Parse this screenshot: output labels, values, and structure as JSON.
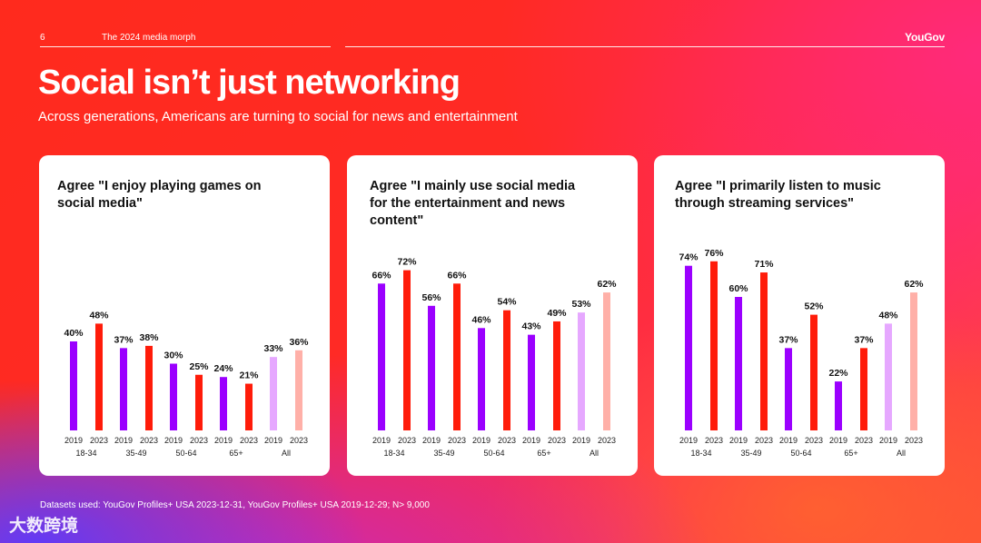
{
  "header": {
    "page_number": "6",
    "doc_title": "The 2024 media morph",
    "brand": "YouGov"
  },
  "title": "Social isn’t just networking",
  "subtitle": "Across generations, Americans are turning to social for news and entertainment",
  "footer": "Datasets used: YouGov Profiles+ USA 2023-12-31, YouGov Profiles+ USA 2019-12-29; N> 9,000",
  "watermark": "大数跨境",
  "colors": {
    "bar_2019": "#9b00ff",
    "bar_2023": "#ff1c0a",
    "bar_all_2019": "#e6a8ff",
    "bar_all_2023": "#ffb0a8",
    "card_bg": "#ffffff"
  },
  "chart_data": [
    {
      "type": "bar",
      "title": "Agree \"I enjoy playing games on social media\"",
      "categories": [
        "18-34",
        "35-49",
        "50-64",
        "65+",
        "All"
      ],
      "years": [
        "2019",
        "2023"
      ],
      "series": [
        {
          "name": "2019",
          "values": [
            40,
            37,
            30,
            24,
            33
          ]
        },
        {
          "name": "2023",
          "values": [
            48,
            38,
            25,
            21,
            36
          ]
        }
      ],
      "value_labels": [
        [
          "40%",
          "48%"
        ],
        [
          "37%",
          "38%"
        ],
        [
          "30%",
          "25%"
        ],
        [
          "24%",
          "21%"
        ],
        [
          "33%",
          "36%"
        ]
      ],
      "ylim": [
        0,
        80
      ]
    },
    {
      "type": "bar",
      "title": "Agree \"I mainly use social media for the entertainment and news content\"",
      "categories": [
        "18-34",
        "35-49",
        "50-64",
        "65+",
        "All"
      ],
      "years": [
        "2019",
        "2023"
      ],
      "series": [
        {
          "name": "2019",
          "values": [
            66,
            56,
            46,
            43,
            53
          ]
        },
        {
          "name": "2023",
          "values": [
            72,
            66,
            54,
            49,
            62
          ]
        }
      ],
      "value_labels": [
        [
          "66%",
          "72%"
        ],
        [
          "56%",
          "66%"
        ],
        [
          "46%",
          "54%"
        ],
        [
          "43%",
          "49%"
        ],
        [
          "53%",
          "62%"
        ]
      ],
      "ylim": [
        0,
        80
      ]
    },
    {
      "type": "bar",
      "title": "Agree \"I primarily listen to music through streaming services\"",
      "categories": [
        "18-34",
        "35-49",
        "50-64",
        "65+",
        "All"
      ],
      "years": [
        "2019",
        "2023"
      ],
      "series": [
        {
          "name": "2019",
          "values": [
            74,
            60,
            37,
            22,
            48
          ]
        },
        {
          "name": "2023",
          "values": [
            76,
            71,
            52,
            37,
            62
          ]
        }
      ],
      "value_labels": [
        [
          "74%",
          "76%"
        ],
        [
          "60%",
          "71%"
        ],
        [
          "37%",
          "52%"
        ],
        [
          "22%",
          "37%"
        ],
        [
          "48%",
          "62%"
        ]
      ],
      "ylim": [
        0,
        80
      ]
    }
  ]
}
